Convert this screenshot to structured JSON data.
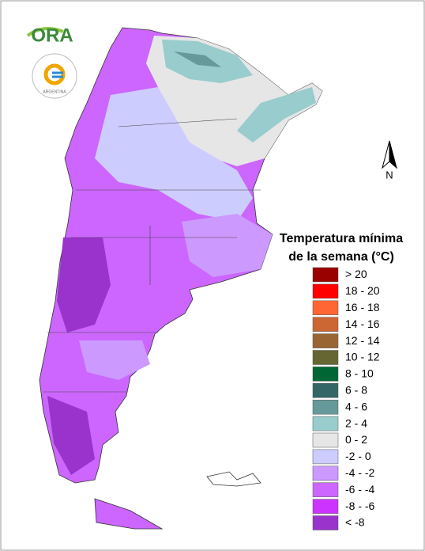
{
  "logo": {
    "text": "ORA",
    "seal_text": "ARGENTINA"
  },
  "north_label": "N",
  "legend": {
    "title": [
      "Temperatura mínima",
      "de la semana (°C)"
    ],
    "items": [
      {
        "label": "> 20",
        "color": "#990000"
      },
      {
        "label": "18 - 20",
        "color": "#ff0000"
      },
      {
        "label": "16 - 18",
        "color": "#ff6633"
      },
      {
        "label": "14 - 16",
        "color": "#cc6633"
      },
      {
        "label": "12 - 14",
        "color": "#996633"
      },
      {
        "label": "10 - 12",
        "color": "#666633"
      },
      {
        "label": "8 - 10",
        "color": "#006633"
      },
      {
        "label": "6 - 8",
        "color": "#336666"
      },
      {
        "label": "4 - 6",
        "color": "#669999"
      },
      {
        "label": "2 - 4",
        "color": "#99cccc"
      },
      {
        "label": "0 - 2",
        "color": "#e6e6e6"
      },
      {
        "label": "-2 - 0",
        "color": "#ccccff"
      },
      {
        "label": "-4 - -2",
        "color": "#cc99ff"
      },
      {
        "label": "-6 - -4",
        "color": "#cc66ff"
      },
      {
        "label": "-8 - -6",
        "color": "#cc33ff"
      },
      {
        "label": "< -8",
        "color": "#9933cc"
      }
    ]
  }
}
